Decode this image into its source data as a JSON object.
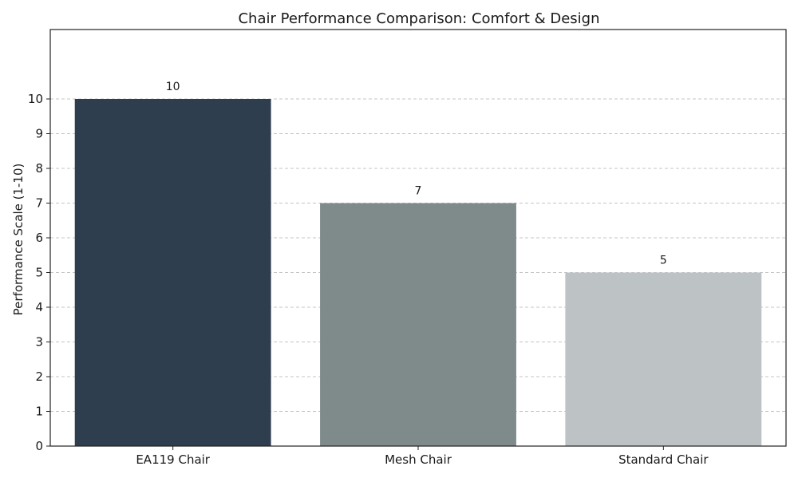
{
  "chart_data": {
    "type": "bar",
    "title": "Chair Performance Comparison: Comfort & Design",
    "xlabel": "",
    "ylabel": "Performance Scale (1-10)",
    "categories": [
      "EA119 Chair",
      "Mesh Chair",
      "Standard Chair"
    ],
    "values": [
      10,
      7,
      5
    ],
    "data_labels": [
      "10",
      "7",
      "5"
    ],
    "colors": [
      "#2e3e4f",
      "#7f8b8b",
      "#bdc2c5"
    ],
    "ylim": [
      0,
      12
    ],
    "yticks": [
      0,
      1,
      2,
      3,
      4,
      5,
      6,
      7,
      8,
      9,
      10
    ],
    "ytick_labels": [
      "0",
      "1",
      "2",
      "3",
      "4",
      "5",
      "6",
      "7",
      "8",
      "9",
      "10"
    ],
    "grid": true,
    "grid_axis": "y",
    "legend": "none"
  }
}
